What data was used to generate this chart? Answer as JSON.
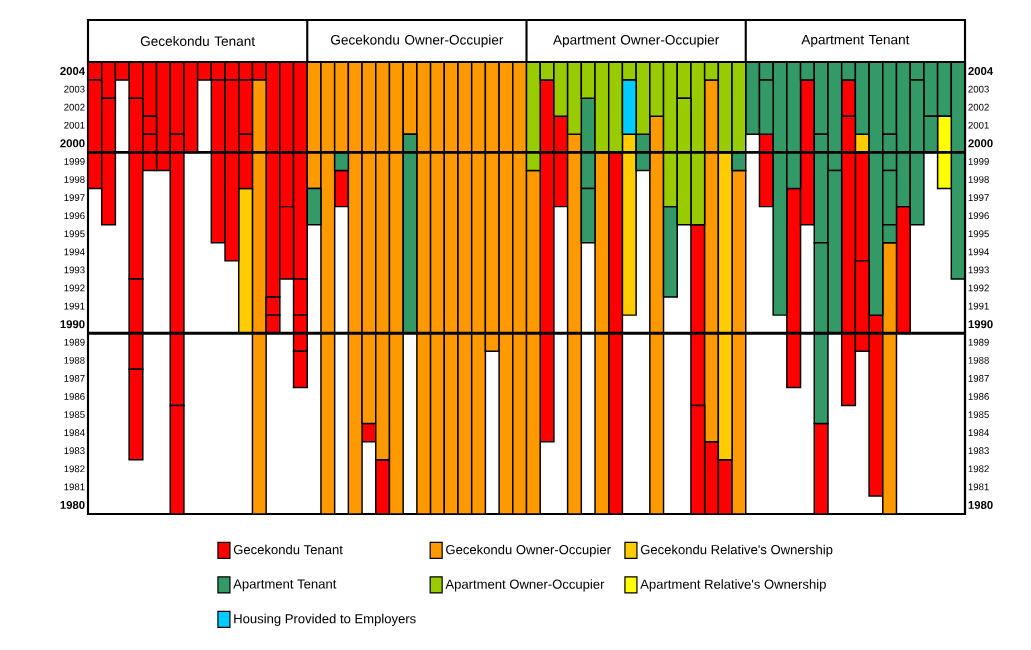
{
  "chart_data": {
    "type": "bar",
    "annotations": [
      "Gecekondu Tenant",
      "Gecekondu Owner-Occupier",
      "Apartment Owner-Occupier",
      "Apartment Tenant"
    ],
    "categories": [
      null,
      null,
      null,
      null,
      null,
      null,
      null,
      null,
      null,
      null,
      null,
      null,
      null,
      null,
      null,
      null,
      null,
      null,
      null,
      null,
      null,
      null,
      null,
      null,
      null,
      null,
      null,
      null,
      null,
      null,
      null,
      null,
      null,
      null,
      null,
      null,
      null,
      null,
      null,
      null,
      null,
      null,
      null,
      null,
      null,
      null,
      null,
      null,
      null,
      null,
      null,
      null,
      null,
      null,
      null,
      null,
      null,
      null,
      null,
      null,
      null,
      null,
      null,
      null
    ],
    "series": [
      {
        "name": "Gecekondu Tenant",
        "color": "#ff0000",
        "values": [
          1,
          2,
          1,
          2,
          3,
          6,
          4,
          5,
          1,
          1,
          1,
          1,
          1,
          13,
          8,
          12,
          null,
          null,
          2,
          null,
          1,
          3,
          null,
          null,
          null,
          null,
          null,
          null,
          null,
          null,
          null,
          null,
          null,
          20,
          5,
          null,
          null,
          null,
          20,
          null,
          null,
          null,
          null,
          null,
          10,
          4,
          3,
          null,
          null,
          4,
          null,
          11,
          8,
          5,
          null,
          2,
          6,
          10,
          null,
          7,
          null,
          null,
          null,
          null
        ],
        "base": [
          2004,
          2003,
          2004,
          2003,
          2002,
          1999,
          2001,
          2000,
          2004,
          2004,
          2004,
          2004,
          2004,
          1992,
          1997,
          1993,
          null,
          null,
          1997,
          null,
          1984,
          1980,
          null,
          null,
          null,
          null,
          null,
          null,
          null,
          null,
          null,
          null,
          null,
          1984,
          1997,
          null,
          null,
          null,
          1980,
          null,
          null,
          null,
          null,
          null,
          1986,
          1980,
          1980,
          null,
          null,
          1997,
          null,
          1987,
          1996,
          1980,
          null,
          2002,
          1994,
          1981,
          null,
          1990,
          null,
          null,
          null,
          null
        ]
      },
      {
        "name": "Gecekondu Owner-Occupier",
        "color": "#ff9900",
        "values": [
          null,
          null,
          null,
          null,
          null,
          null,
          null,
          null,
          null,
          null,
          null,
          null,
          24,
          null,
          null,
          null,
          7,
          25,
          5,
          25,
          20,
          22,
          25,
          4,
          25,
          25,
          25,
          25,
          25,
          16,
          25,
          25,
          19,
          null,
          null,
          21,
          null,
          20,
          null,
          null,
          null,
          22,
          null,
          null,
          null,
          20,
          null,
          19,
          null,
          null,
          null,
          null,
          null,
          null,
          null,
          null,
          null,
          null,
          15,
          null,
          null,
          null,
          null,
          null
        ],
        "base": [
          null,
          null,
          null,
          null,
          null,
          null,
          null,
          null,
          null,
          null,
          null,
          null,
          1980,
          null,
          null,
          null,
          1998,
          1980,
          2000,
          1980,
          1985,
          1983,
          1980,
          2001,
          1980,
          1980,
          1980,
          1980,
          1980,
          1989,
          1980,
          1980,
          1980,
          null,
          null,
          1980,
          null,
          1980,
          null,
          null,
          null,
          1980,
          null,
          null,
          null,
          1984,
          null,
          1980,
          null,
          null,
          null,
          null,
          null,
          null,
          null,
          null,
          null,
          null,
          1980,
          null,
          null,
          null,
          null,
          null
        ]
      },
      {
        "name": "Gecekondu Relative's Ownership",
        "color": "#ffcc00",
        "values": [
          null,
          null,
          null,
          null,
          null,
          null,
          null,
          null,
          null,
          null,
          null,
          8,
          null,
          null,
          null,
          null,
          null,
          null,
          null,
          null,
          null,
          null,
          null,
          null,
          null,
          null,
          null,
          null,
          null,
          null,
          null,
          null,
          null,
          null,
          null,
          null,
          null,
          null,
          null,
          10,
          null,
          null,
          null,
          null,
          null,
          null,
          17,
          null,
          null,
          null,
          null,
          null,
          null,
          null,
          null,
          null,
          1,
          null,
          null,
          null,
          null,
          null,
          null,
          null
        ],
        "base": [
          null,
          null,
          null,
          null,
          null,
          null,
          null,
          null,
          null,
          null,
          null,
          1990,
          null,
          null,
          null,
          null,
          null,
          null,
          null,
          null,
          null,
          null,
          null,
          null,
          null,
          null,
          null,
          null,
          null,
          null,
          null,
          null,
          null,
          null,
          null,
          null,
          null,
          null,
          null,
          1991,
          null,
          null,
          null,
          null,
          null,
          null,
          1983,
          null,
          null,
          null,
          null,
          null,
          null,
          null,
          null,
          null,
          2000,
          null,
          null,
          null,
          null,
          null,
          null,
          null
        ]
      },
      {
        "name": "Apartment Tenant",
        "color": "#339966",
        "values": [
          null,
          null,
          null,
          null,
          null,
          null,
          null,
          null,
          null,
          null,
          null,
          null,
          null,
          null,
          null,
          null,
          2,
          null,
          1,
          null,
          null,
          null,
          null,
          11,
          null,
          null,
          null,
          null,
          null,
          null,
          null,
          null,
          null,
          null,
          null,
          null,
          5,
          null,
          null,
          null,
          2,
          null,
          5,
          null,
          null,
          null,
          null,
          1,
          4,
          1,
          14,
          7,
          1,
          4,
          6,
          1,
          4,
          14,
          4,
          8,
          1,
          3,
          3,
          12
        ],
        "base": [
          null,
          null,
          null,
          null,
          null,
          null,
          null,
          null,
          null,
          null,
          null,
          null,
          null,
          null,
          null,
          null,
          1996,
          null,
          1999,
          null,
          null,
          null,
          null,
          1990,
          null,
          null,
          null,
          null,
          null,
          null,
          null,
          null,
          null,
          null,
          null,
          null,
          1998,
          null,
          null,
          null,
          1999,
          null,
          1992,
          null,
          null,
          null,
          null,
          1999,
          2001,
          2004,
          1991,
          1998,
          2004,
          2001,
          1999,
          2004,
          2001,
          1991,
          2001,
          1997,
          2004,
          2002,
          2002,
          1993
        ]
      },
      {
        "name": "Apartment Owner-Occupier",
        "color": "#99cc00",
        "values": [
          null,
          null,
          null,
          null,
          null,
          null,
          null,
          null,
          null,
          null,
          null,
          null,
          null,
          null,
          null,
          null,
          null,
          null,
          null,
          null,
          null,
          null,
          null,
          null,
          null,
          null,
          null,
          null,
          null,
          null,
          null,
          null,
          6,
          1,
          3,
          4,
          2,
          5,
          5,
          1,
          4,
          3,
          8,
          2,
          9,
          1,
          5,
          5,
          null,
          null,
          null,
          null,
          null,
          null,
          null,
          null,
          null,
          null,
          null,
          null,
          null,
          null,
          null,
          null
        ],
        "base": [
          null,
          null,
          null,
          null,
          null,
          null,
          null,
          null,
          null,
          null,
          null,
          null,
          null,
          null,
          null,
          null,
          null,
          null,
          null,
          null,
          null,
          null,
          null,
          null,
          null,
          null,
          null,
          null,
          null,
          null,
          null,
          null,
          1999,
          2004,
          2002,
          2001,
          2003,
          2000,
          2000,
          2004,
          2001,
          2002,
          1997,
          2003,
          1996,
          2004,
          2000,
          2000,
          null,
          null,
          null,
          null,
          null,
          null,
          null,
          null,
          null,
          null,
          null,
          null,
          null,
          null,
          null,
          null
        ]
      },
      {
        "name": "Apartment Relative's Ownership",
        "color": "#ffff00",
        "values": [
          null,
          null,
          null,
          null,
          null,
          null,
          null,
          null,
          null,
          null,
          null,
          null,
          null,
          null,
          null,
          null,
          null,
          null,
          null,
          null,
          null,
          null,
          null,
          null,
          null,
          null,
          null,
          null,
          null,
          null,
          null,
          null,
          null,
          null,
          null,
          null,
          null,
          null,
          null,
          null,
          null,
          null,
          null,
          null,
          null,
          null,
          null,
          null,
          null,
          null,
          null,
          null,
          null,
          null,
          null,
          null,
          null,
          null,
          null,
          null,
          null,
          null,
          4,
          null
        ],
        "base": [
          null,
          null,
          null,
          null,
          null,
          null,
          null,
          null,
          null,
          null,
          null,
          null,
          null,
          null,
          null,
          null,
          null,
          null,
          null,
          null,
          null,
          null,
          null,
          null,
          null,
          null,
          null,
          null,
          null,
          null,
          null,
          null,
          null,
          null,
          null,
          null,
          null,
          null,
          null,
          null,
          null,
          null,
          null,
          null,
          null,
          null,
          null,
          null,
          null,
          null,
          null,
          null,
          null,
          null,
          null,
          null,
          null,
          null,
          null,
          null,
          null,
          null,
          1998,
          null
        ]
      },
      {
        "name": "Housing Provided to Employers",
        "color": "#00ccff",
        "values": [
          null,
          null,
          null,
          null,
          null,
          null,
          null,
          null,
          null,
          null,
          null,
          null,
          null,
          null,
          null,
          null,
          null,
          null,
          null,
          null,
          null,
          null,
          null,
          null,
          null,
          null,
          null,
          null,
          null,
          null,
          null,
          null,
          null,
          null,
          null,
          null,
          null,
          null,
          null,
          3,
          null,
          null,
          null,
          null,
          null,
          null,
          null,
          null,
          null,
          null,
          null,
          null,
          null,
          null,
          null,
          null,
          null,
          null,
          null,
          null,
          null,
          null,
          null,
          null
        ],
        "base": [
          null,
          null,
          null,
          null,
          null,
          null,
          null,
          null,
          null,
          null,
          null,
          null,
          null,
          null,
          null,
          null,
          null,
          null,
          null,
          null,
          null,
          null,
          null,
          null,
          null,
          null,
          null,
          null,
          null,
          null,
          null,
          null,
          null,
          null,
          null,
          null,
          null,
          null,
          null,
          2001,
          null,
          null,
          null,
          null,
          null,
          null,
          null,
          null,
          null,
          null,
          null,
          null,
          null,
          null,
          null,
          null,
          null,
          null,
          null,
          null,
          null,
          null,
          null,
          null
        ]
      },
      {
        "color": "#ff0000",
        "values": [
          6,
          7,
          null,
          10,
          1,
          null,
          15,
          null,
          null,
          9,
          10,
          3,
          null,
          1,
          4,
          2,
          null,
          null,
          null,
          null,
          null,
          null,
          null,
          null,
          null,
          null,
          null,
          null,
          null,
          null,
          null,
          null,
          null,
          null,
          null,
          null,
          null,
          null,
          null,
          null,
          null,
          null,
          null,
          null,
          6,
          null,
          null,
          null,
          null,
          null,
          null,
          null,
          null,
          null,
          null,
          16,
          5,
          null,
          null,
          null,
          null,
          null,
          null,
          null
        ],
        "base": [
          1998,
          1996,
          null,
          1993,
          2001,
          null,
          1986,
          null,
          null,
          1995,
          1994,
          2001,
          null,
          1991,
          1993,
          1991,
          null,
          null,
          null,
          null,
          null,
          null,
          null,
          null,
          null,
          null,
          null,
          null,
          null,
          null,
          null,
          null,
          null,
          null,
          null,
          null,
          null,
          null,
          null,
          null,
          null,
          null,
          null,
          null,
          1980,
          null,
          null,
          null,
          null,
          null,
          null,
          null,
          null,
          null,
          null,
          1986,
          1989,
          null,
          null,
          null,
          null,
          null,
          null,
          null
        ]
      },
      {
        "color": "#ff0000",
        "values": [
          null,
          null,
          null,
          5,
          2,
          null,
          6,
          null,
          null,
          null,
          null,
          3,
          null,
          1,
          null,
          2,
          null,
          null,
          null,
          null,
          null,
          null,
          null,
          null,
          null,
          null,
          null,
          null,
          null,
          null,
          null,
          null,
          null,
          null,
          null,
          null,
          null,
          null,
          null,
          null,
          null,
          null,
          null,
          null,
          null,
          null,
          null,
          null,
          null,
          null,
          null,
          null,
          null,
          null,
          null,
          null,
          null,
          null,
          null,
          null,
          null,
          null,
          null,
          null
        ],
        "base": [
          null,
          null,
          null,
          1988,
          1999,
          null,
          1980,
          null,
          null,
          null,
          null,
          1998,
          null,
          1990,
          null,
          1989,
          null,
          null,
          null,
          null,
          null,
          null,
          null,
          null,
          null,
          null,
          null,
          null,
          null,
          null,
          null,
          null,
          null,
          null,
          null,
          null,
          null,
          null,
          null,
          null,
          null,
          null,
          null,
          null,
          null,
          null,
          null,
          null,
          null,
          null,
          null,
          null,
          null,
          null,
          null,
          null,
          null,
          null,
          null,
          null,
          null,
          null,
          null,
          null
        ]
      },
      {
        "color": "#ff0000",
        "values": [
          null,
          null,
          null,
          5,
          null,
          null,
          null,
          null,
          null,
          null,
          null,
          null,
          null,
          null,
          null,
          2,
          null,
          null,
          null,
          null,
          null,
          null,
          null,
          null,
          null,
          null,
          null,
          null,
          null,
          null,
          null,
          null,
          null,
          null,
          null,
          null,
          null,
          null,
          null,
          null,
          null,
          null,
          null,
          null,
          null,
          null,
          null,
          null,
          null,
          null,
          null,
          null,
          null,
          null,
          null,
          null,
          null,
          null,
          null,
          null,
          null,
          null,
          null,
          null
        ],
        "base": [
          null,
          null,
          null,
          1983,
          null,
          null,
          null,
          null,
          null,
          null,
          null,
          null,
          null,
          null,
          null,
          1987,
          null,
          null,
          null,
          null,
          null,
          null,
          null,
          null,
          null,
          null,
          null,
          null,
          null,
          null,
          null,
          null,
          null,
          null,
          null,
          null,
          null,
          null,
          null,
          null,
          null,
          null,
          null,
          null,
          null,
          null,
          null,
          null,
          null,
          null,
          null,
          null,
          null,
          null,
          null,
          null,
          null,
          null,
          null,
          null,
          null,
          null,
          null,
          null
        ]
      },
      {
        "color": "#339966",
        "values": [
          null,
          null,
          null,
          null,
          null,
          null,
          null,
          null,
          null,
          null,
          null,
          null,
          null,
          null,
          null,
          null,
          null,
          null,
          null,
          null,
          null,
          null,
          null,
          null,
          null,
          null,
          null,
          null,
          null,
          null,
          null,
          null,
          null,
          null,
          null,
          null,
          3,
          null,
          null,
          null,
          null,
          null,
          null,
          null,
          null,
          null,
          null,
          null,
          null,
          3,
          null,
          null,
          null,
          6,
          9,
          null,
          null,
          null,
          2,
          null,
          8,
          2,
          null,
          null
        ],
        "base": [
          null,
          null,
          null,
          null,
          null,
          null,
          null,
          null,
          null,
          null,
          null,
          null,
          null,
          null,
          null,
          null,
          null,
          null,
          null,
          null,
          null,
          null,
          null,
          null,
          null,
          null,
          null,
          null,
          null,
          null,
          null,
          null,
          null,
          null,
          null,
          null,
          1995,
          null,
          null,
          null,
          null,
          null,
          null,
          null,
          null,
          null,
          null,
          null,
          null,
          2001,
          null,
          null,
          null,
          1995,
          1990,
          null,
          null,
          null,
          1999,
          null,
          1996,
          2000,
          null,
          null
        ]
      },
      {
        "color": "#339966",
        "values": [
          null,
          null,
          null,
          null,
          null,
          null,
          null,
          null,
          null,
          null,
          null,
          null,
          null,
          null,
          null,
          null,
          null,
          null,
          null,
          null,
          null,
          null,
          null,
          null,
          null,
          null,
          null,
          null,
          null,
          null,
          null,
          null,
          null,
          null,
          null,
          null,
          null,
          null,
          null,
          null,
          null,
          null,
          null,
          null,
          null,
          null,
          null,
          null,
          null,
          null,
          null,
          null,
          null,
          10,
          null,
          null,
          null,
          null,
          3,
          null,
          null,
          null,
          null,
          null
        ],
        "base": [
          null,
          null,
          null,
          null,
          null,
          null,
          null,
          null,
          null,
          null,
          null,
          null,
          null,
          null,
          null,
          null,
          null,
          null,
          null,
          null,
          null,
          null,
          null,
          null,
          null,
          null,
          null,
          null,
          null,
          null,
          null,
          null,
          null,
          null,
          null,
          null,
          null,
          null,
          null,
          null,
          null,
          null,
          null,
          null,
          null,
          null,
          null,
          null,
          null,
          null,
          null,
          null,
          null,
          1985,
          null,
          null,
          null,
          null,
          1996,
          null,
          null,
          null,
          null,
          null
        ]
      },
      {
        "color": "#339966",
        "values": [
          null,
          null,
          null,
          null,
          null,
          null,
          null,
          null,
          null,
          null,
          null,
          null,
          null,
          null,
          null,
          null,
          null,
          null,
          null,
          null,
          null,
          null,
          null,
          null,
          null,
          null,
          null,
          null,
          null,
          null,
          null,
          null,
          null,
          null,
          null,
          null,
          null,
          null,
          null,
          null,
          null,
          null,
          null,
          null,
          null,
          null,
          null,
          null,
          null,
          null,
          null,
          null,
          null,
          null,
          null,
          null,
          null,
          null,
          1,
          null,
          null,
          null,
          null,
          null
        ],
        "base": [
          null,
          null,
          null,
          null,
          null,
          null,
          null,
          null,
          null,
          null,
          null,
          null,
          null,
          null,
          null,
          null,
          null,
          null,
          null,
          null,
          null,
          null,
          null,
          null,
          null,
          null,
          null,
          null,
          null,
          null,
          null,
          null,
          null,
          null,
          null,
          null,
          null,
          null,
          null,
          null,
          null,
          null,
          null,
          null,
          null,
          null,
          null,
          null,
          null,
          null,
          null,
          null,
          null,
          null,
          null,
          null,
          null,
          null,
          1995,
          null,
          null,
          null,
          null,
          null
        ]
      },
      {
        "color": "#99cc00",
        "values": [
          null,
          null,
          null,
          null,
          null,
          null,
          null,
          null,
          null,
          null,
          null,
          null,
          null,
          null,
          null,
          null,
          null,
          null,
          null,
          null,
          null,
          null,
          null,
          null,
          null,
          null,
          null,
          null,
          null,
          null,
          null,
          null,
          null,
          null,
          null,
          null,
          null,
          null,
          null,
          null,
          null,
          null,
          null,
          7,
          null,
          null,
          null,
          null,
          null,
          null,
          null,
          null,
          null,
          null,
          null,
          null,
          null,
          null,
          null,
          null,
          null,
          null,
          null,
          null
        ],
        "base": [
          null,
          null,
          null,
          null,
          null,
          null,
          null,
          null,
          null,
          null,
          null,
          null,
          null,
          null,
          null,
          null,
          null,
          null,
          null,
          null,
          null,
          null,
          null,
          null,
          null,
          null,
          null,
          null,
          null,
          null,
          null,
          null,
          null,
          null,
          null,
          null,
          null,
          null,
          null,
          null,
          null,
          null,
          null,
          1996,
          null,
          null,
          null,
          null,
          null,
          null,
          null,
          null,
          null,
          null,
          null,
          null,
          null,
          null,
          null,
          null,
          null,
          null,
          null,
          null
        ]
      }
    ],
    "ylim": [
      1980,
      2005
    ],
    "yticks": [
      {
        "value": 1980.5,
        "label": "1980"
      },
      {
        "value": 1981.5,
        "label": "1981"
      },
      {
        "value": 1982.5,
        "label": "1982"
      },
      {
        "value": 1983.5,
        "label": "1983"
      },
      {
        "value": 1984.5,
        "label": "1984"
      },
      {
        "value": 1985.5,
        "label": "1985"
      },
      {
        "value": 1986.5,
        "label": "1986"
      },
      {
        "value": 1987.5,
        "label": "1987"
      },
      {
        "value": 1988.5,
        "label": "1988"
      },
      {
        "value": 1989.5,
        "label": "1989"
      },
      {
        "value": 1990.5,
        "label": "1990"
      },
      {
        "value": 1991.5,
        "label": "1991"
      },
      {
        "value": 1992.5,
        "label": "1992"
      },
      {
        "value": 1993.5,
        "label": "1993"
      },
      {
        "value": 1994.5,
        "label": "1994"
      },
      {
        "value": 1995.5,
        "label": "1995"
      },
      {
        "value": 1996.5,
        "label": "1996"
      },
      {
        "value": 1997.5,
        "label": "1997"
      },
      {
        "value": 1998.5,
        "label": "1998"
      },
      {
        "value": 1999.5,
        "label": "1999"
      },
      {
        "value": 2000.5,
        "label": "2000"
      },
      {
        "value": 2001.5,
        "label": "2001"
      },
      {
        "value": 2002.5,
        "label": "2002"
      },
      {
        "value": 2003.5,
        "label": "2003"
      },
      {
        "value": 2004.5,
        "label": "2004"
      }
    ],
    "y2lim": [
      1980,
      2005
    ],
    "y2ticks": [
      {
        "value": 1980.5,
        "label": "1980"
      },
      {
        "value": 1981.5,
        "label": "1981"
      },
      {
        "value": 1982.5,
        "label": "1982"
      },
      {
        "value": 1983.5,
        "label": "1983"
      },
      {
        "value": 1984.5,
        "label": "1984"
      },
      {
        "value": 1985.5,
        "label": "1985"
      },
      {
        "value": 1986.5,
        "label": "1986"
      },
      {
        "value": 1987.5,
        "label": "1987"
      },
      {
        "value": 1988.5,
        "label": "1988"
      },
      {
        "value": 1989.5,
        "label": "1989"
      },
      {
        "value": 1990.5,
        "label": "1990"
      },
      {
        "value": 1991.5,
        "label": "1991"
      },
      {
        "value": 1992.5,
        "label": "1992"
      },
      {
        "value": 1993.5,
        "label": "1993"
      },
      {
        "value": 1994.5,
        "label": "1994"
      },
      {
        "value": 1995.5,
        "label": "1995"
      },
      {
        "value": 1996.5,
        "label": "1996"
      },
      {
        "value": 1997.5,
        "label": "1997"
      },
      {
        "value": 1998.5,
        "label": "1998"
      },
      {
        "value": 1999.5,
        "label": "1999"
      },
      {
        "value": 2000.5,
        "label": "2000"
      },
      {
        "value": 2001.5,
        "label": "2001"
      },
      {
        "value": 2002.5,
        "label": "2002"
      },
      {
        "value": 2003.5,
        "label": "2003"
      },
      {
        "value": 2004.5,
        "label": "2004"
      }
    ],
    "ref_lines": [
      {
        "axis": "y",
        "value": 1990
      },
      {
        "axis": "y",
        "value": 2000
      }
    ],
    "tick_labels": "y",
    "legend": "bottom"
  }
}
